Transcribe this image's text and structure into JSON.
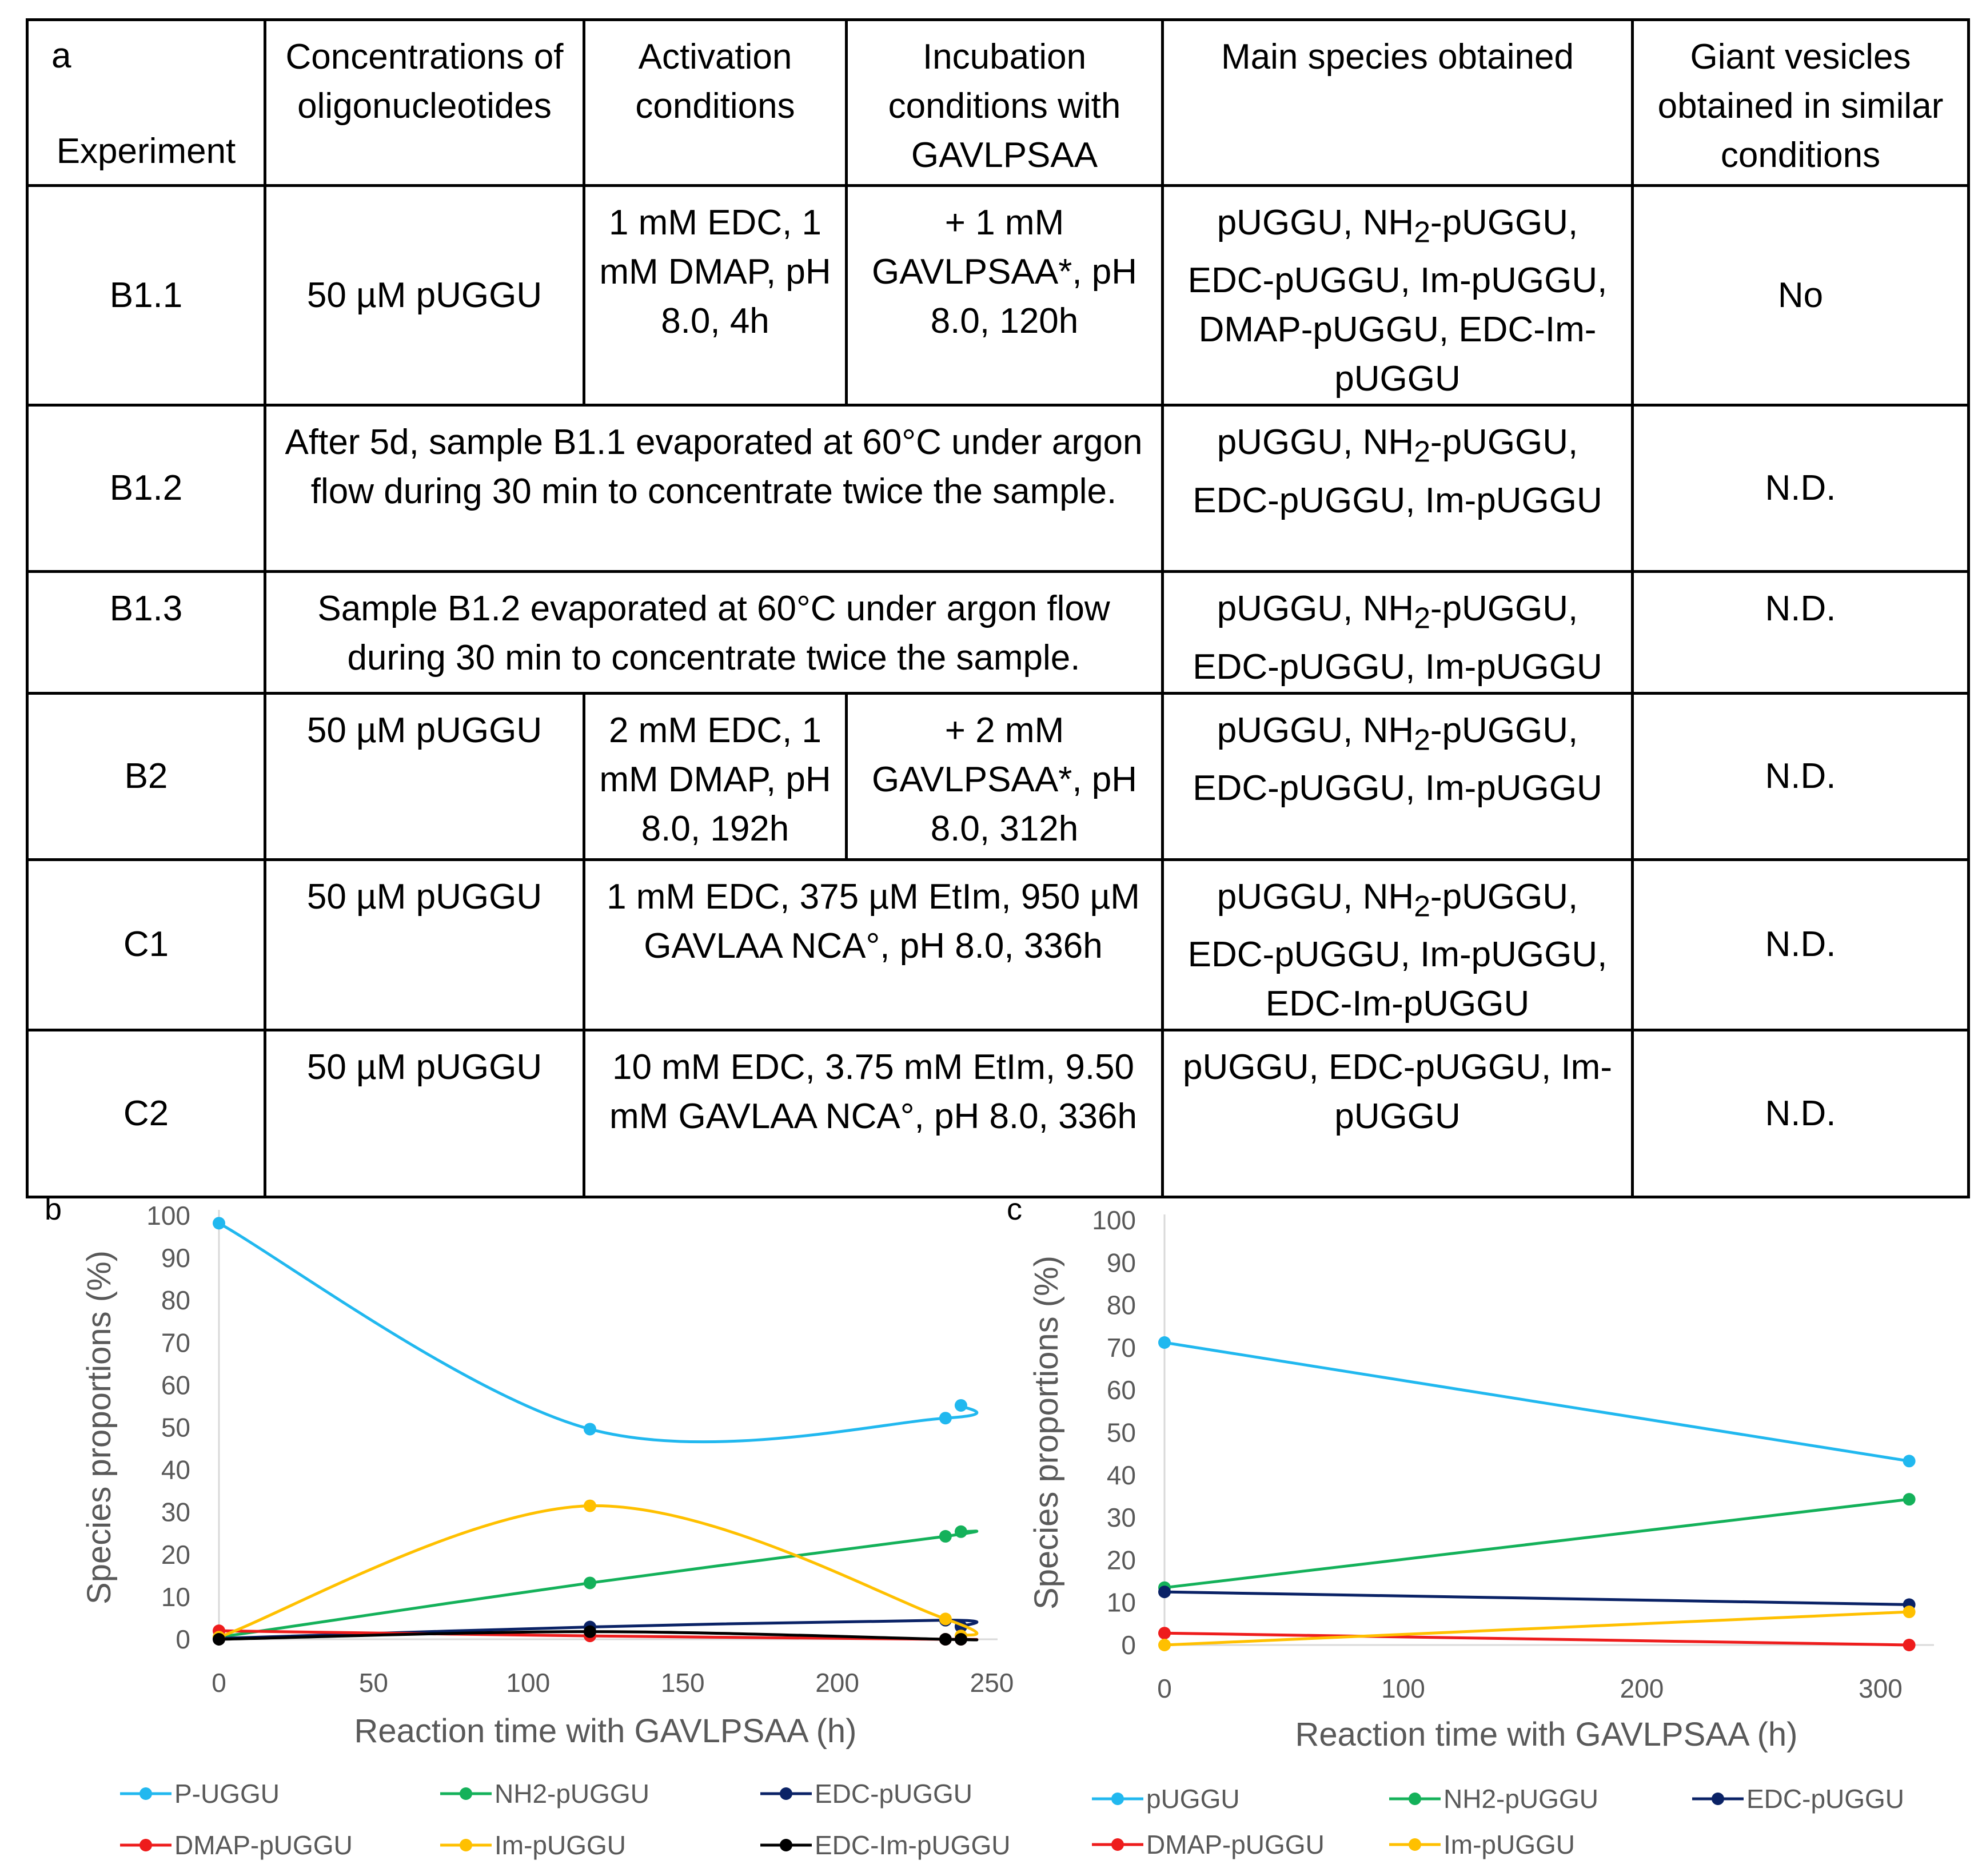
{
  "table": {
    "panel_label": "a",
    "headers": {
      "experiment": "Experiment",
      "concentrations": "Concentrations of oligonucleotides",
      "activation": "Activation conditions",
      "incubation": "Incubation conditions with GAVLPSAA",
      "species": "Main species obtained",
      "vesicles": "Giant vesicles obtained in similar conditions"
    },
    "rows": [
      {
        "experiment": "B1.1",
        "concentration": "50 µM pUGGU",
        "activation": "1 mM EDC, 1 mM DMAP, pH 8.0, 4h",
        "incubation": "+ 1 mM GAVLPSAA*, pH 8.0, 120h",
        "species_html": "pUGGU, NH<sub>2</sub>-pUGGU, EDC-pUGGU, Im-pUGGU, DMAP-pUGGU, EDC-Im-pUGGU",
        "vesicles": "No"
      },
      {
        "experiment": "B1.2",
        "merged": "After 5d, sample B1.1 evaporated at 60°C under argon flow during 30 min to concentrate twice the sample.",
        "species_html": "pUGGU, NH<sub>2</sub>-pUGGU, EDC-pUGGU, Im-pUGGU",
        "vesicles": "N.D."
      },
      {
        "experiment": "B1.3",
        "merged": "Sample B1.2 evaporated at 60°C under argon flow during 30 min to concentrate twice the sample.",
        "species_html": "pUGGU, NH<sub>2</sub>-pUGGU, EDC-pUGGU, Im-pUGGU",
        "vesicles": "N.D."
      },
      {
        "experiment": "B2",
        "concentration": "50 µM pUGGU",
        "activation": "2 mM EDC, 1 mM DMAP, pH 8.0, 192h",
        "incubation": "+ 2 mM GAVLPSAA*, pH 8.0, 312h",
        "species_html": "pUGGU, NH<sub>2</sub>-pUGGU, EDC-pUGGU, Im-pUGGU",
        "vesicles": "N.D."
      },
      {
        "experiment": "C1",
        "concentration": "50 µM pUGGU",
        "conditions": "1 mM EDC, 375 µM EtIm, 950 µM GAVLAA NCA°, pH 8.0, 336h",
        "species_html": "pUGGU, NH<sub>2</sub>-pUGGU, EDC-pUGGU, Im-pUGGU, EDC-Im-pUGGU",
        "vesicles": "N.D."
      },
      {
        "experiment": "C2",
        "concentration": "50 µM pUGGU",
        "conditions": "10 mM EDC, 3.75 mM EtIm, 9.50 mM GAVLAA NCA°, pH 8.0, 336h",
        "species_html": "pUGGU, EDC-pUGGU, Im-pUGGU",
        "vesicles": "N.D."
      }
    ]
  },
  "chart_data": [
    {
      "panel_label": "b",
      "type": "line",
      "xlabel": "Reaction time with GAVLPSAA (h)",
      "ylabel": "Species proportions (%)",
      "xlim": [
        0,
        250
      ],
      "ylim": [
        0,
        100
      ],
      "xticks": [
        0,
        50,
        100,
        150,
        200,
        250
      ],
      "yticks": [
        0,
        10,
        20,
        30,
        40,
        50,
        60,
        70,
        80,
        90,
        100
      ],
      "smooth": true,
      "legend_position": "bottom",
      "series": [
        {
          "name": "P-UGGU",
          "color": "#21b8ef",
          "x": [
            0,
            120,
            235,
            240
          ],
          "y": [
            98.2,
            49.6,
            52.2,
            55.2
          ]
        },
        {
          "name": "NH2-pUGGU",
          "color": "#14b15a",
          "x": [
            0,
            120,
            235,
            240
          ],
          "y": [
            0.5,
            13.3,
            24.3,
            25.4
          ]
        },
        {
          "name": "EDC-pUGGU",
          "color": "#0a2266",
          "x": [
            0,
            120,
            235,
            240
          ],
          "y": [
            0.2,
            2.9,
            4.5,
            3.0
          ]
        },
        {
          "name": "DMAP-pUGGU",
          "color": "#ee1c1c",
          "x": [
            0,
            120,
            235,
            240
          ],
          "y": [
            2.0,
            0.8,
            0.0,
            0.0
          ]
        },
        {
          "name": "Im-pUGGU",
          "color": "#ffc000",
          "x": [
            0,
            120,
            235,
            240
          ],
          "y": [
            0.5,
            31.5,
            4.8,
            0.8
          ]
        },
        {
          "name": "EDC-Im-pUGGU",
          "color": "#000000",
          "x": [
            0,
            120,
            235,
            240
          ],
          "y": [
            0.0,
            1.8,
            0.0,
            0.0
          ]
        }
      ]
    },
    {
      "panel_label": "c",
      "type": "line",
      "xlabel": "Reaction time with GAVLPSAA (h)",
      "ylabel": "Species proportions (%)",
      "xlim": [
        0,
        320
      ],
      "ylim": [
        0,
        100
      ],
      "xticks": [
        0,
        100,
        200,
        300
      ],
      "yticks": [
        0,
        10,
        20,
        30,
        40,
        50,
        60,
        70,
        80,
        90,
        100
      ],
      "smooth": false,
      "legend_position": "bottom",
      "series": [
        {
          "name": "pUGGU",
          "color": "#21b8ef",
          "x": [
            0,
            312
          ],
          "y": [
            71.2,
            43.3
          ]
        },
        {
          "name": "NH2-pUGGU",
          "color": "#14b15a",
          "x": [
            0,
            312
          ],
          "y": [
            13.5,
            34.3
          ]
        },
        {
          "name": "EDC-pUGGU",
          "color": "#0a2266",
          "x": [
            0,
            312
          ],
          "y": [
            12.5,
            9.5
          ]
        },
        {
          "name": "DMAP-pUGGU",
          "color": "#ee1c1c",
          "x": [
            0,
            312
          ],
          "y": [
            2.8,
            0.0
          ]
        },
        {
          "name": "Im-pUGGU",
          "color": "#ffc000",
          "x": [
            0,
            312
          ],
          "y": [
            0.0,
            7.8
          ]
        }
      ]
    }
  ]
}
